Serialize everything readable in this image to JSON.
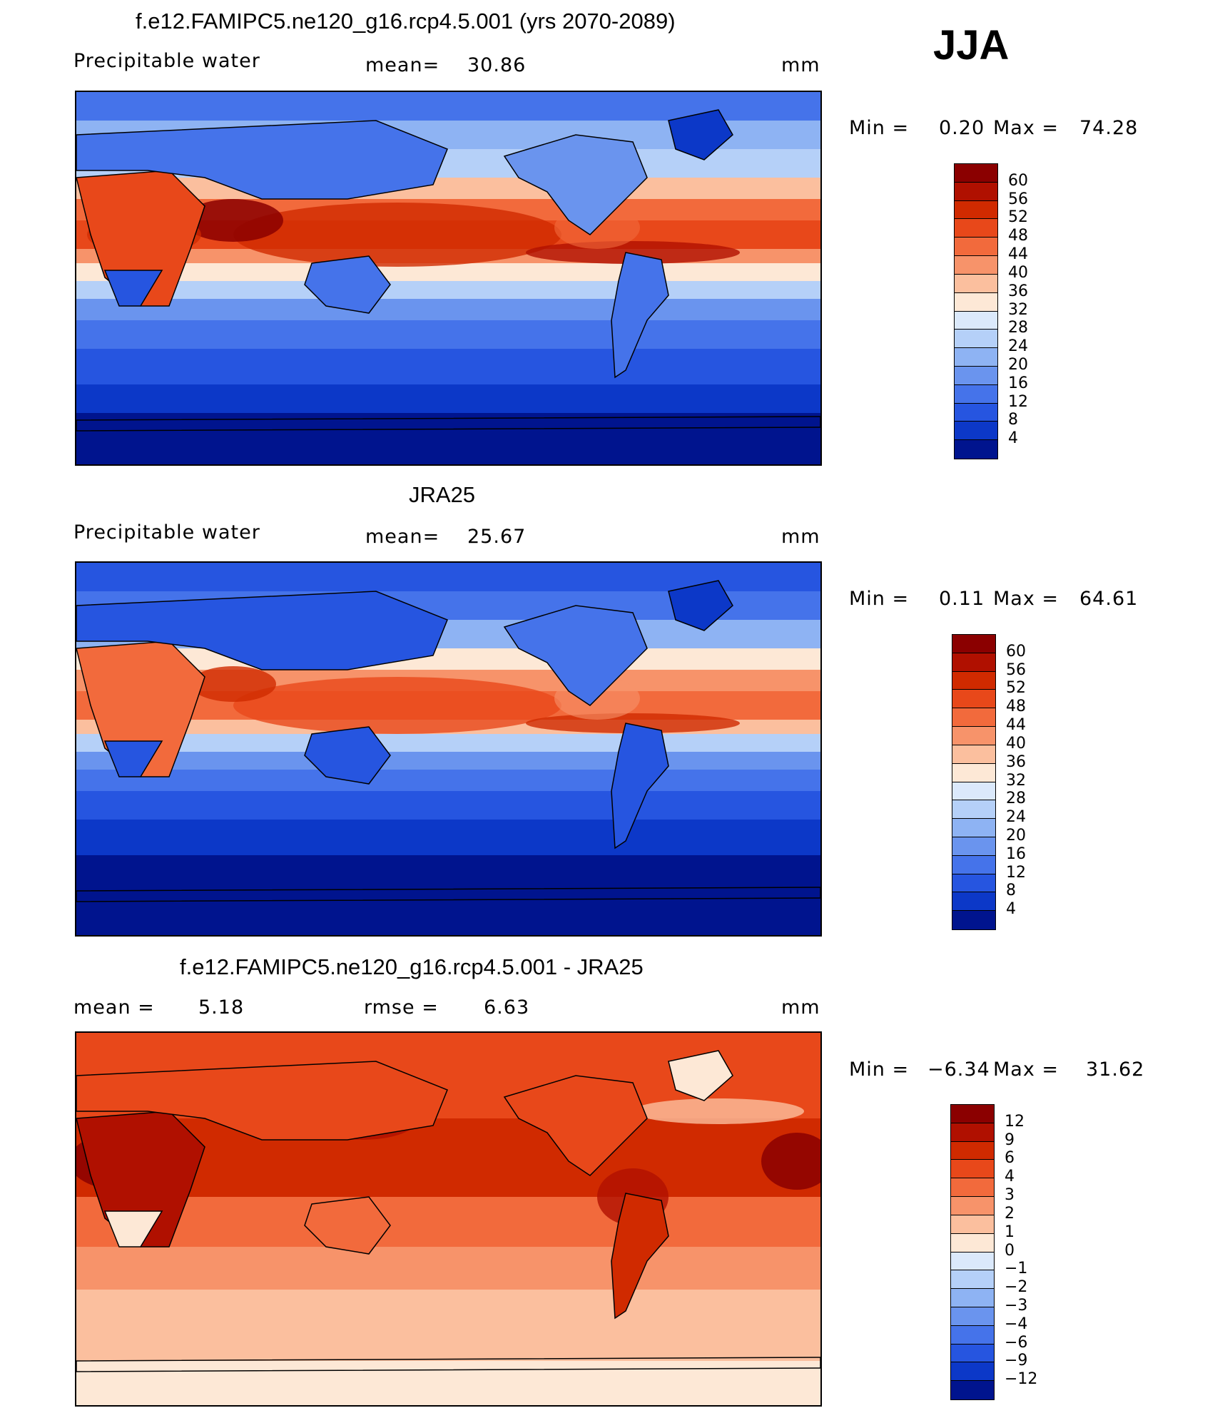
{
  "season": "JJA",
  "panels": [
    {
      "id": "model",
      "title": "f.e12.FAMIPC5.ne120_g16.rcp4.5.001 (yrs 2070-2089)",
      "variable": "Precipitable water",
      "stat1_label": "mean=",
      "stat1_value": "30.86",
      "units": "mm",
      "min_label": "Min =",
      "min_value": "0.20",
      "max_label": "Max =",
      "max_value": "74.28",
      "colorbar": {
        "levels": [
          "60",
          "56",
          "52",
          "48",
          "44",
          "40",
          "36",
          "32",
          "28",
          "24",
          "20",
          "16",
          "12",
          "8",
          "4"
        ],
        "colors": [
          "#8b0000",
          "#b01000",
          "#d02a00",
          "#e8481a",
          "#f26a3c",
          "#f7936a",
          "#fbbf9e",
          "#fde8d6",
          "#dbe9fb",
          "#b5d0f8",
          "#8eb3f3",
          "#6a94ee",
          "#4573ea",
          "#2655e0",
          "#0c38c8",
          "#00148e"
        ]
      }
    },
    {
      "id": "obs",
      "title": "JRA25",
      "variable": "Precipitable water",
      "stat1_label": "mean=",
      "stat1_value": "25.67",
      "units": "mm",
      "min_label": "Min =",
      "min_value": "0.11",
      "max_label": "Max =",
      "max_value": "64.61",
      "colorbar": {
        "levels": [
          "60",
          "56",
          "52",
          "48",
          "44",
          "40",
          "36",
          "32",
          "28",
          "24",
          "20",
          "16",
          "12",
          "8",
          "4"
        ],
        "colors": [
          "#8b0000",
          "#b01000",
          "#d02a00",
          "#e8481a",
          "#f26a3c",
          "#f7936a",
          "#fbbf9e",
          "#fde8d6",
          "#dbe9fb",
          "#b5d0f8",
          "#8eb3f3",
          "#6a94ee",
          "#4573ea",
          "#2655e0",
          "#0c38c8",
          "#00148e"
        ]
      }
    },
    {
      "id": "diff",
      "title": "f.e12.FAMIPC5.ne120_g16.rcp4.5.001 - JRA25",
      "stat1_label": "mean =",
      "stat1_value": "5.18",
      "stat2_label": "rmse =",
      "stat2_value": "6.63",
      "units": "mm",
      "min_label": "Min =",
      "min_value": "−6.34",
      "max_label": "Max =",
      "max_value": "31.62",
      "colorbar": {
        "levels": [
          "12",
          "9",
          "6",
          "4",
          "3",
          "2",
          "1",
          "0",
          "−1",
          "−2",
          "−3",
          "−4",
          "−6",
          "−9",
          "−12"
        ],
        "colors": [
          "#8b0000",
          "#b01000",
          "#d02a00",
          "#e8481a",
          "#f26a3c",
          "#f7936a",
          "#fbbf9e",
          "#fde8d6",
          "#dbe9fb",
          "#b5d0f8",
          "#8eb3f3",
          "#6a94ee",
          "#4573ea",
          "#2655e0",
          "#0c38c8",
          "#00148e"
        ]
      }
    }
  ]
}
